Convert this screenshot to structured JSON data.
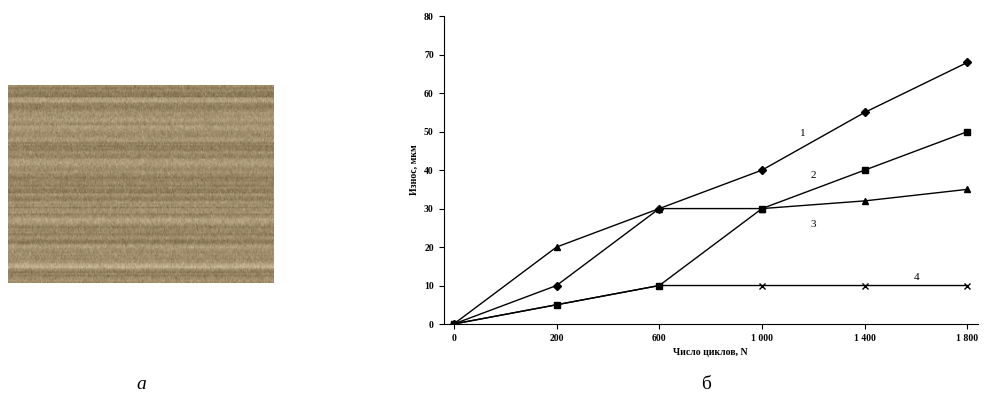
{
  "panel_labels": [
    "а",
    "б"
  ],
  "chart_data": {
    "type": "line",
    "x_label": "Число циклов, N",
    "y_label": "Износ, мкм",
    "categories": [
      "0",
      "200",
      "600",
      "1 000",
      "1 400",
      "1 800"
    ],
    "ylim": [
      0,
      80
    ],
    "yticks": [
      0,
      10,
      20,
      30,
      40,
      50,
      60,
      70,
      80
    ],
    "grid": false,
    "series": [
      {
        "name": "1",
        "color": "#000000",
        "marker": "diamond",
        "line_style": "solid",
        "values": [
          0,
          10,
          30,
          40,
          55,
          68
        ]
      },
      {
        "name": "2",
        "color": "#000000",
        "marker": "square",
        "line_style": "solid",
        "values": [
          0,
          5,
          10,
          30,
          40,
          50
        ]
      },
      {
        "name": "3",
        "color": "#000000",
        "marker": "triangle",
        "line_style": "solid",
        "values": [
          0,
          20,
          30,
          30,
          32,
          35
        ]
      },
      {
        "name": "4",
        "color": "#000000",
        "marker": "x",
        "line_style": "solid",
        "values": [
          0,
          5,
          10,
          10,
          10,
          10
        ]
      }
    ]
  }
}
